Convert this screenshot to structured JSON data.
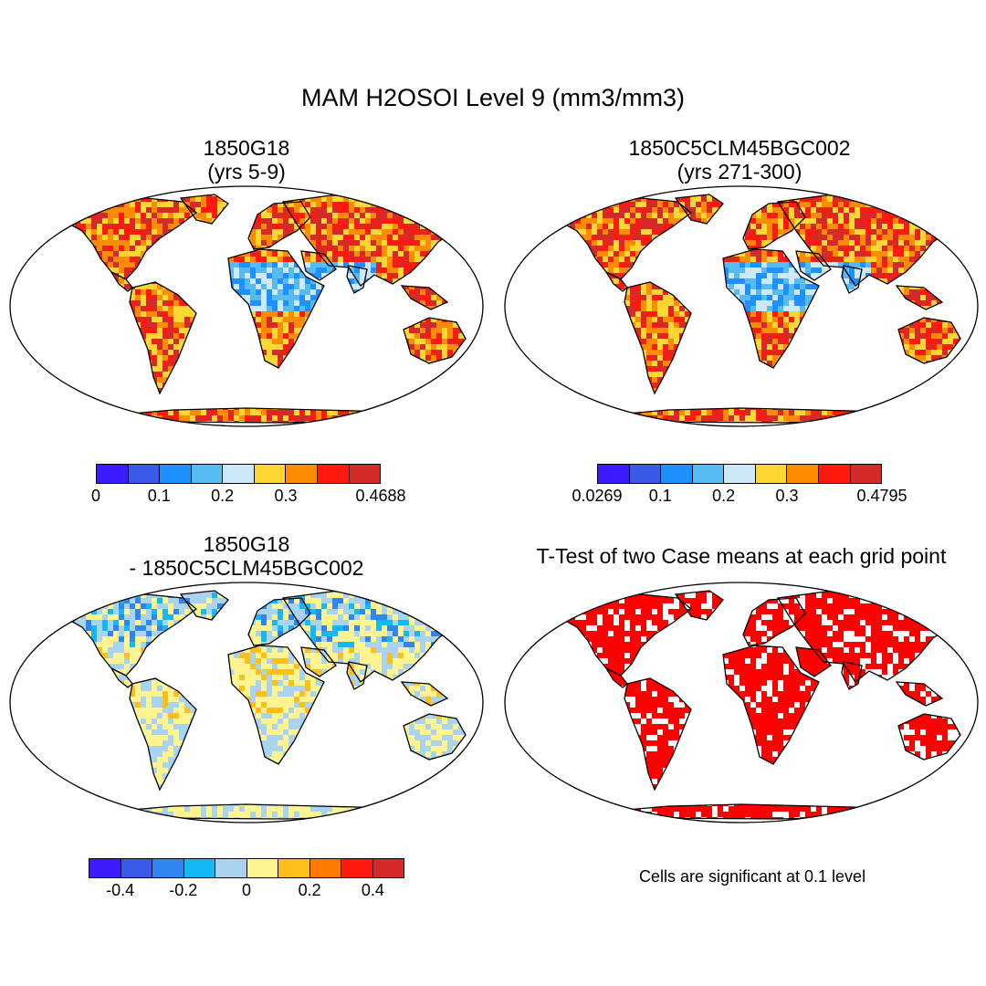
{
  "title": "MAM H2OSOI Level 9 (mm3/mm3)",
  "panels": [
    {
      "id": "p1",
      "title_lines": [
        "1850G18",
        "(yrs 5-9)"
      ],
      "colors": [
        "#3b1bff",
        "#3a5bea",
        "#1e90ff",
        "#55bbf0",
        "#cde8f6",
        "#ffd733",
        "#ff8c00",
        "#ff1a0f",
        "#d42a2a"
      ],
      "ticks": [
        "0",
        "0.1",
        "0.2",
        "0.3",
        "0.4688"
      ],
      "tick_positions": [
        0,
        0.2222,
        0.4444,
        0.6667,
        1.0
      ]
    },
    {
      "id": "p2",
      "title_lines": [
        "1850C5CLM45BGC002",
        "(yrs 271-300)"
      ],
      "colors": [
        "#3b1bff",
        "#3a5bea",
        "#1e90ff",
        "#55bbf0",
        "#cde8f6",
        "#ffd733",
        "#ff8c00",
        "#ff1a0f",
        "#d42a2a"
      ],
      "ticks": [
        "0.0269",
        "0.1",
        "0.2",
        "0.3",
        "0.4795"
      ],
      "tick_positions": [
        0,
        0.2222,
        0.4444,
        0.6667,
        1.0
      ]
    },
    {
      "id": "p3",
      "title_lines": [
        "1850G18",
        "- 1850C5CLM45BGC002"
      ],
      "colors": [
        "#3b1bff",
        "#3a5bea",
        "#2f86f0",
        "#14b8f5",
        "#a9d4ef",
        "#fff48f",
        "#ffbf1a",
        "#ff7a00",
        "#ff1a0f",
        "#d42a2a"
      ],
      "ticks": [
        "-0.4",
        "-0.2",
        "0",
        "0.2",
        "0.4"
      ],
      "tick_positions": [
        0.1,
        0.3,
        0.5,
        0.7,
        0.9
      ]
    },
    {
      "id": "p4",
      "title_lines": [
        "T-Test of two Case means at each grid point"
      ],
      "note": "Cells are significant at 0.1 level",
      "fill": "#ff0000"
    }
  ]
}
